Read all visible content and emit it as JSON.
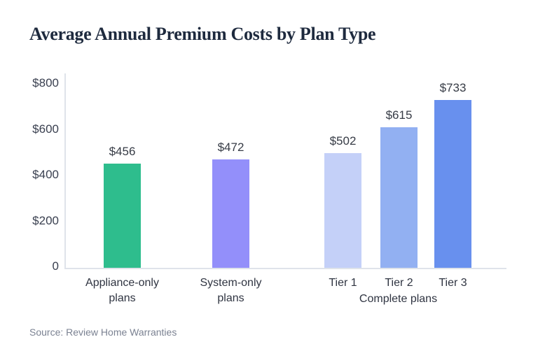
{
  "header": {
    "title": "Average Annual Premium Costs by Plan Type"
  },
  "source": {
    "text": "Source: Review Home Warranties"
  },
  "chart_data": {
    "type": "bar",
    "title": "Average Annual Premium Costs by Plan Type",
    "categories": [
      "Appliance-only plans",
      "System-only plans",
      "Tier 1",
      "Tier 2",
      "Tier 3"
    ],
    "values": [
      456,
      472,
      502,
      615,
      733
    ],
    "bars": [
      {
        "label_lines": [
          "Appliance-only",
          "plans"
        ],
        "value": 456,
        "value_label": "$456",
        "color": "#2ebd8d"
      },
      {
        "label_lines": [
          "System-only",
          "plans"
        ],
        "value": 472,
        "value_label": "$472",
        "color": "#938ffa"
      },
      {
        "label_lines": [
          "Tier 1"
        ],
        "value": 502,
        "value_label": "$502",
        "color": "#c4d0f8"
      },
      {
        "label_lines": [
          "Tier 2"
        ],
        "value": 615,
        "value_label": "$615",
        "color": "#92b0f2"
      },
      {
        "label_lines": [
          "Tier 3"
        ],
        "value": 733,
        "value_label": "$733",
        "color": "#6890ee"
      }
    ],
    "group": {
      "label": "Complete plans",
      "member_indices": [
        2,
        3,
        4
      ]
    },
    "y_ticks": [
      {
        "value": 800,
        "label": "$800"
      },
      {
        "value": 600,
        "label": "$600"
      },
      {
        "value": 400,
        "label": "$400"
      },
      {
        "value": 200,
        "label": "$200"
      },
      {
        "value": 0,
        "label": "0"
      }
    ],
    "ylim": [
      0,
      800
    ],
    "xlabel": "",
    "ylabel": "",
    "grid": false,
    "legend": false,
    "axis_color": "#dfe3ea",
    "text_color": "#363b45",
    "title_color": "#1e2a3e",
    "source_color": "#7b8292"
  }
}
